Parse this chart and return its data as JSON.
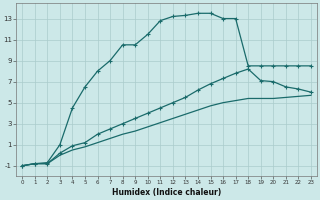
{
  "xlabel": "Humidex (Indice chaleur)",
  "bg_color": "#cce8e8",
  "grid_color": "#aacccc",
  "line_color": "#1a6b6b",
  "xlim": [
    -0.5,
    23.5
  ],
  "ylim": [
    -2,
    14.5
  ],
  "xticks": [
    0,
    1,
    2,
    3,
    4,
    5,
    6,
    7,
    8,
    9,
    10,
    11,
    12,
    13,
    14,
    15,
    16,
    17,
    18,
    19,
    20,
    21,
    22,
    23
  ],
  "yticks": [
    -1,
    1,
    3,
    5,
    7,
    9,
    11,
    13
  ],
  "curve_x": [
    0,
    1,
    2,
    3,
    4,
    5,
    6,
    7,
    8,
    9,
    10,
    11,
    12,
    13,
    14,
    15,
    16,
    17,
    18,
    19,
    20,
    21,
    22,
    23
  ],
  "curve_y": [
    -1.0,
    -0.8,
    -0.7,
    1.0,
    4.5,
    6.5,
    8.0,
    9.0,
    10.5,
    10.5,
    11.5,
    12.8,
    13.2,
    13.3,
    13.5,
    13.5,
    13.0,
    13.0,
    8.5,
    8.5,
    8.5,
    8.5,
    8.5,
    8.5
  ],
  "upper_x": [
    0,
    1,
    2,
    3,
    4,
    5,
    6,
    7,
    8,
    9,
    10,
    11,
    12,
    13,
    14,
    15,
    16,
    17,
    18,
    19,
    20,
    21,
    22,
    23
  ],
  "upper_y": [
    -1.0,
    -0.8,
    -0.8,
    0.2,
    0.9,
    1.2,
    2.0,
    2.5,
    3.0,
    3.5,
    4.0,
    4.5,
    5.0,
    5.5,
    6.2,
    6.8,
    7.3,
    7.8,
    8.2,
    7.1,
    7.0,
    6.5,
    6.3,
    6.0
  ],
  "lower_x": [
    0,
    1,
    2,
    3,
    4,
    5,
    6,
    7,
    8,
    9,
    10,
    11,
    12,
    13,
    14,
    15,
    16,
    17,
    18,
    19,
    20,
    21,
    22,
    23
  ],
  "lower_y": [
    -1.0,
    -0.8,
    -0.8,
    0.0,
    0.5,
    0.8,
    1.2,
    1.6,
    2.0,
    2.3,
    2.7,
    3.1,
    3.5,
    3.9,
    4.3,
    4.7,
    5.0,
    5.2,
    5.4,
    5.4,
    5.4,
    5.5,
    5.6,
    5.7
  ]
}
